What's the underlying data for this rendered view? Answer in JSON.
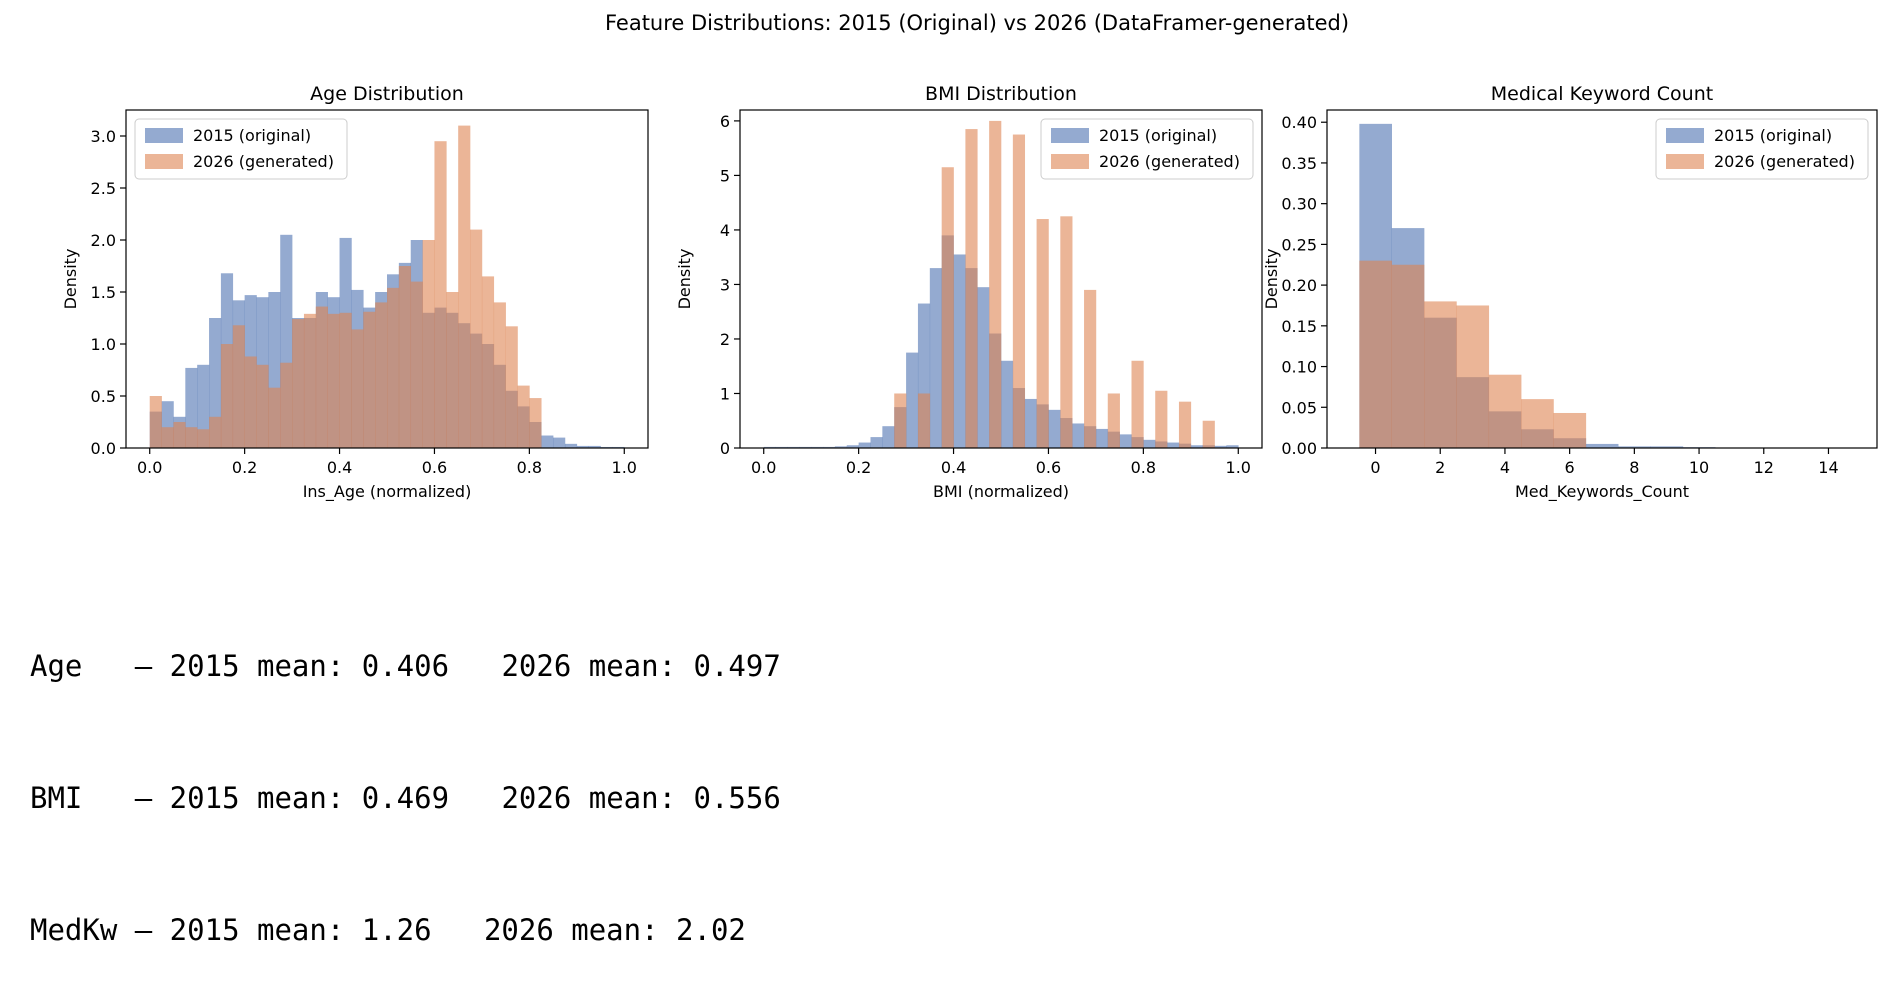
{
  "figure": {
    "suptitle": "Feature Distributions: 2015 (Original) vs 2026 (DataFramer-generated)",
    "colors": {
      "original": "#4c72b0",
      "generated": "#dd8452"
    }
  },
  "chart_data": [
    {
      "type": "histogram",
      "title": "Age Distribution",
      "xlabel": "Ins_Age (normalized)",
      "ylabel": "Density",
      "xlim": [
        -0.05,
        1.05
      ],
      "ylim": [
        0,
        3.25
      ],
      "xticks": [
        "0.0",
        "0.2",
        "0.4",
        "0.6",
        "0.8",
        "1.0"
      ],
      "xtick_values": [
        0,
        0.2,
        0.4,
        0.6,
        0.8,
        1.0
      ],
      "yticks": [
        "0.0",
        "0.5",
        "1.0",
        "1.5",
        "2.0",
        "2.5",
        "3.0"
      ],
      "ytick_values": [
        0,
        0.5,
        1.0,
        1.5,
        2.0,
        2.5,
        3.0
      ],
      "legend_position": "upper-left",
      "series": [
        {
          "name": "2015 (original)",
          "color_key": "original",
          "bin_edges": [
            0.0,
            0.025,
            0.05,
            0.075,
            0.1,
            0.125,
            0.15,
            0.175,
            0.2,
            0.225,
            0.25,
            0.275,
            0.3,
            0.325,
            0.35,
            0.375,
            0.4,
            0.425,
            0.45,
            0.475,
            0.5,
            0.525,
            0.55,
            0.575,
            0.6,
            0.625,
            0.65,
            0.675,
            0.7,
            0.725,
            0.75,
            0.775,
            0.8,
            0.825,
            0.85,
            0.875,
            0.9,
            0.925,
            0.95,
            0.975,
            1.0
          ],
          "values": [
            0.35,
            0.45,
            0.3,
            0.77,
            0.8,
            1.25,
            1.68,
            1.42,
            1.47,
            1.45,
            1.5,
            2.05,
            1.25,
            1.25,
            1.5,
            1.45,
            2.02,
            1.52,
            1.35,
            1.5,
            1.67,
            1.78,
            2.0,
            1.3,
            1.35,
            1.3,
            1.2,
            1.1,
            1.0,
            0.8,
            0.55,
            0.4,
            0.25,
            0.12,
            0.1,
            0.04,
            0.02,
            0.02,
            0.01,
            0.01
          ]
        },
        {
          "name": "2026 (generated)",
          "color_key": "generated",
          "bin_edges": [
            0.0,
            0.025,
            0.05,
            0.075,
            0.1,
            0.125,
            0.15,
            0.175,
            0.2,
            0.225,
            0.25,
            0.275,
            0.3,
            0.325,
            0.35,
            0.375,
            0.4,
            0.425,
            0.45,
            0.475,
            0.5,
            0.525,
            0.55,
            0.575,
            0.6,
            0.625,
            0.65,
            0.675,
            0.7,
            0.725,
            0.75,
            0.775,
            0.8,
            0.825,
            0.85,
            0.875,
            0.9,
            0.925,
            0.95,
            0.975,
            1.0
          ],
          "values": [
            0.5,
            0.2,
            0.25,
            0.2,
            0.18,
            0.3,
            1.0,
            1.18,
            0.88,
            0.8,
            0.58,
            0.82,
            1.24,
            1.29,
            1.36,
            1.29,
            1.3,
            1.14,
            1.31,
            1.4,
            1.54,
            1.75,
            1.6,
            2.0,
            2.95,
            1.5,
            3.1,
            2.1,
            1.65,
            1.4,
            1.17,
            0.6,
            0.48,
            0.0,
            0.0,
            0.0,
            0.0,
            0.0,
            0.0,
            0.0
          ]
        }
      ]
    },
    {
      "type": "histogram",
      "title": "BMI Distribution",
      "xlabel": "BMI (normalized)",
      "ylabel": "Density",
      "xlim": [
        -0.05,
        1.05
      ],
      "ylim": [
        0,
        6.2
      ],
      "xticks": [
        "0.0",
        "0.2",
        "0.4",
        "0.6",
        "0.8",
        "1.0"
      ],
      "xtick_values": [
        0,
        0.2,
        0.4,
        0.6,
        0.8,
        1.0
      ],
      "yticks": [
        "0",
        "1",
        "2",
        "3",
        "4",
        "5",
        "6"
      ],
      "ytick_values": [
        0,
        1,
        2,
        3,
        4,
        5,
        6
      ],
      "legend_position": "upper-right",
      "series": [
        {
          "name": "2015 (original)",
          "color_key": "original",
          "bin_edges": [
            0.0,
            0.025,
            0.05,
            0.075,
            0.1,
            0.125,
            0.15,
            0.175,
            0.2,
            0.225,
            0.25,
            0.275,
            0.3,
            0.325,
            0.35,
            0.375,
            0.4,
            0.425,
            0.45,
            0.475,
            0.5,
            0.525,
            0.55,
            0.575,
            0.6,
            0.625,
            0.65,
            0.675,
            0.7,
            0.725,
            0.75,
            0.775,
            0.8,
            0.825,
            0.85,
            0.875,
            0.9,
            0.925,
            0.95,
            0.975,
            1.0
          ],
          "values": [
            0.02,
            0.02,
            0.02,
            0.02,
            0.02,
            0.02,
            0.03,
            0.05,
            0.1,
            0.2,
            0.4,
            0.75,
            1.75,
            2.65,
            3.3,
            3.9,
            3.55,
            3.3,
            2.95,
            2.1,
            1.6,
            1.1,
            0.9,
            0.8,
            0.7,
            0.55,
            0.45,
            0.4,
            0.35,
            0.3,
            0.25,
            0.2,
            0.15,
            0.12,
            0.1,
            0.08,
            0.05,
            0.05,
            0.04,
            0.05
          ]
        },
        {
          "name": "2026 (generated)",
          "color_key": "generated",
          "bin_edges": [
            0.0,
            0.025,
            0.05,
            0.075,
            0.1,
            0.125,
            0.15,
            0.175,
            0.2,
            0.225,
            0.25,
            0.275,
            0.3,
            0.325,
            0.35,
            0.375,
            0.4,
            0.425,
            0.45,
            0.475,
            0.5,
            0.525,
            0.55,
            0.575,
            0.6,
            0.625,
            0.65,
            0.675,
            0.7,
            0.725,
            0.75,
            0.775,
            0.8,
            0.825,
            0.85,
            0.875,
            0.9,
            0.925,
            0.95,
            0.975,
            1.0
          ],
          "values": [
            0,
            0,
            0,
            0,
            0,
            0,
            0,
            0,
            0,
            0,
            0,
            1.0,
            0.0,
            1.0,
            0.0,
            5.15,
            0.0,
            5.85,
            0.0,
            6.0,
            0.0,
            5.75,
            0.0,
            4.2,
            0.0,
            4.25,
            0.0,
            2.9,
            0.0,
            1.0,
            0.0,
            1.6,
            0.0,
            1.05,
            0.0,
            0.85,
            0.0,
            0.5,
            0.0,
            0.0
          ]
        }
      ]
    },
    {
      "type": "histogram",
      "title": "Medical Keyword Count",
      "xlabel": "Med_Keywords_Count",
      "ylabel": "Density",
      "xlim": [
        -1.5,
        15.5
      ],
      "ylim": [
        0,
        0.415
      ],
      "xticks": [
        "0",
        "2",
        "4",
        "6",
        "8",
        "10",
        "12",
        "14"
      ],
      "xtick_values": [
        0,
        2,
        4,
        6,
        8,
        10,
        12,
        14
      ],
      "yticks": [
        "0.00",
        "0.05",
        "0.10",
        "0.15",
        "0.20",
        "0.25",
        "0.30",
        "0.35",
        "0.40"
      ],
      "ytick_values": [
        0,
        0.05,
        0.1,
        0.15,
        0.2,
        0.25,
        0.3,
        0.35,
        0.4
      ],
      "legend_position": "upper-right",
      "series": [
        {
          "name": "2015 (original)",
          "color_key": "original",
          "bin_edges": [
            -0.5,
            0.5,
            1.5,
            2.5,
            3.5,
            4.5,
            5.5,
            6.5,
            7.5,
            8.5,
            9.5,
            10.5,
            11.5,
            12.5,
            13.5,
            14.5
          ],
          "values": [
            0.398,
            0.27,
            0.16,
            0.087,
            0.045,
            0.023,
            0.012,
            0.005,
            0.002,
            0.002,
            0.001,
            0.0005,
            0.0005,
            0.0005,
            0.0005
          ]
        },
        {
          "name": "2026 (generated)",
          "color_key": "generated",
          "bin_edges": [
            -0.5,
            0.5,
            1.5,
            2.5,
            3.5,
            4.5,
            5.5,
            6.5,
            7.5,
            8.5,
            9.5,
            10.5,
            11.5,
            12.5,
            13.5,
            14.5
          ],
          "values": [
            0.23,
            0.225,
            0.18,
            0.175,
            0.09,
            0.06,
            0.043,
            0.0,
            0.0,
            0.0,
            0.0,
            0.0,
            0.0,
            0.0,
            0.0
          ]
        }
      ]
    }
  ],
  "stats": [
    {
      "label": "Age   ",
      "orig": "– 2015 mean: 0.406",
      "gen": "2026 mean: 0.497"
    },
    {
      "label": "BMI   ",
      "orig": "– 2015 mean: 0.469",
      "gen": "2026 mean: 0.556"
    },
    {
      "label": "MedKw ",
      "orig": "– 2015 mean: 1.26",
      "gen": "2026 mean: 2.02"
    }
  ]
}
